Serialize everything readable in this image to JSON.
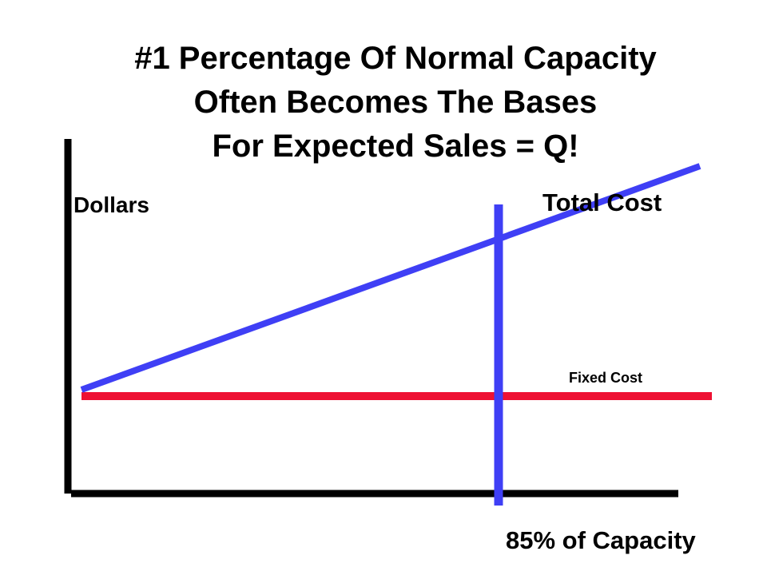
{
  "title_lines": [
    "#1 Percentage Of Normal Capacity",
    "Often Becomes The Bases",
    "For Expected Sales = Q!"
  ],
  "colors": {
    "total_cost_line": "#3f3ff5",
    "fixed_cost_line": "#ee1133",
    "capacity_marker": "#3f3ff5",
    "axes": "#000000"
  },
  "chart_data": {
    "type": "line",
    "title": "#1 Percentage Of Normal Capacity Often Becomes The Bases For Expected Sales = Q!",
    "ylabel": "Dollars",
    "xlabel": "85% of Capacity",
    "grid": false,
    "legend": "none",
    "series": [
      {
        "name": "Total Cost",
        "x": [
          0,
          100
        ],
        "y": [
          0,
          100
        ]
      },
      {
        "name": "Fixed Cost",
        "x": [
          0,
          100
        ],
        "y": [
          0,
          0
        ]
      }
    ],
    "markers": [
      {
        "label": "85% of Capacity",
        "x": 85
      }
    ],
    "xlim": [
      0,
      100
    ],
    "ylim": [
      0,
      100
    ]
  }
}
